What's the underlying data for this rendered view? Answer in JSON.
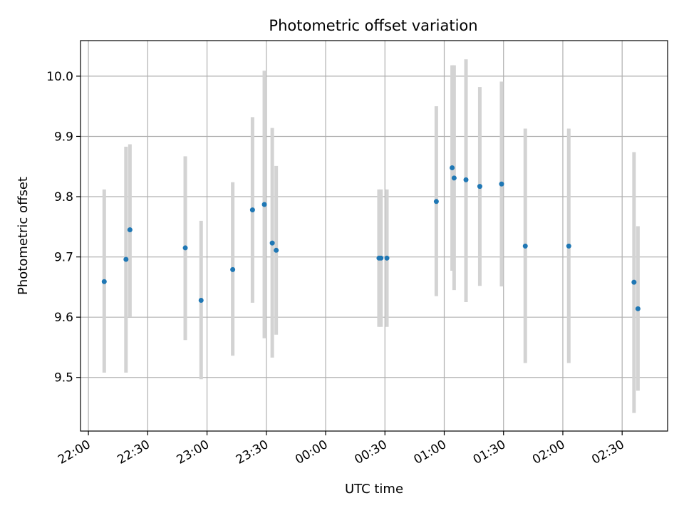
{
  "chart_data": {
    "type": "scatter",
    "title": "Photometric offset variation",
    "xlabel": "UTC time",
    "ylabel": "Photometric offset",
    "xlim": [
      "21:56",
      "02:53"
    ],
    "ylim": [
      9.411,
      10.059
    ],
    "xticks": [
      "22:00",
      "22:30",
      "23:00",
      "23:30",
      "00:00",
      "00:30",
      "01:00",
      "01:30",
      "02:00",
      "02:30"
    ],
    "yticks": [
      9.5,
      9.6,
      9.7,
      9.8,
      9.9,
      10.0
    ],
    "ytick_labels": [
      "9.5",
      "9.6",
      "9.7",
      "9.8",
      "9.9",
      "10.0"
    ],
    "grid": true,
    "point_color": "#1f77b4",
    "errorbar_color": "#d3d3d3",
    "points": [
      {
        "t": "22:08",
        "y": 9.659,
        "lo": 9.508,
        "hi": 9.812
      },
      {
        "t": "22:19",
        "y": 9.696,
        "lo": 9.508,
        "hi": 9.883
      },
      {
        "t": "22:21",
        "y": 9.745,
        "lo": 9.601,
        "hi": 9.887
      },
      {
        "t": "22:49",
        "y": 9.715,
        "lo": 9.562,
        "hi": 9.867
      },
      {
        "t": "22:57",
        "y": 9.628,
        "lo": 9.497,
        "hi": 9.76
      },
      {
        "t": "23:13",
        "y": 9.679,
        "lo": 9.536,
        "hi": 9.824
      },
      {
        "t": "23:23",
        "y": 9.778,
        "lo": 9.624,
        "hi": 9.932
      },
      {
        "t": "23:29",
        "y": 9.787,
        "lo": 9.565,
        "hi": 10.009
      },
      {
        "t": "23:33",
        "y": 9.723,
        "lo": 9.533,
        "hi": 9.914
      },
      {
        "t": "23:35",
        "y": 9.711,
        "lo": 9.571,
        "hi": 9.851
      },
      {
        "t": "00:27",
        "y": 9.698,
        "lo": 9.584,
        "hi": 9.812
      },
      {
        "t": "00:28",
        "y": 9.698,
        "lo": 9.584,
        "hi": 9.812
      },
      {
        "t": "00:31",
        "y": 9.698,
        "lo": 9.584,
        "hi": 9.812
      },
      {
        "t": "00:56",
        "y": 9.792,
        "lo": 9.635,
        "hi": 9.95
      },
      {
        "t": "01:04",
        "y": 9.848,
        "lo": 9.677,
        "hi": 10.018
      },
      {
        "t": "01:05",
        "y": 9.831,
        "lo": 9.645,
        "hi": 10.018
      },
      {
        "t": "01:11",
        "y": 9.828,
        "lo": 9.625,
        "hi": 10.028
      },
      {
        "t": "01:18",
        "y": 9.817,
        "lo": 9.652,
        "hi": 9.982
      },
      {
        "t": "01:29",
        "y": 9.821,
        "lo": 9.651,
        "hi": 9.991
      },
      {
        "t": "01:41",
        "y": 9.718,
        "lo": 9.524,
        "hi": 9.913
      },
      {
        "t": "02:03",
        "y": 9.718,
        "lo": 9.524,
        "hi": 9.913
      },
      {
        "t": "02:36",
        "y": 9.658,
        "lo": 9.441,
        "hi": 9.874
      },
      {
        "t": "02:38",
        "y": 9.614,
        "lo": 9.478,
        "hi": 9.751
      }
    ]
  }
}
